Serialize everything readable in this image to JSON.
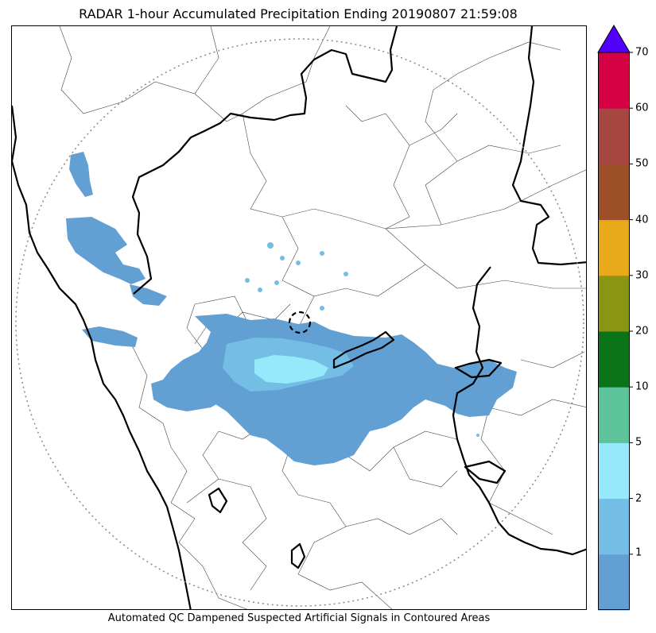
{
  "title": "RADAR 1-hour Accumulated Precipitation Ending 20190807 21:59:08",
  "footer": "Automated QC Dampened Suspected Artificial Signals in Contoured Areas",
  "colorbar": {
    "ticks": [
      "1",
      "2",
      "5",
      "10",
      "20",
      "30",
      "40",
      "50",
      "60",
      "70"
    ],
    "bins": [
      {
        "color": "#62a0d4"
      },
      {
        "color": "#74bde4"
      },
      {
        "color": "#96e9fa"
      },
      {
        "color": "#5cc39b"
      },
      {
        "color": "#0b7419"
      },
      {
        "color": "#8a9514"
      },
      {
        "color": "#e8a91b"
      },
      {
        "color": "#9d5027"
      },
      {
        "color": "#a64742"
      },
      {
        "color": "#d50144"
      }
    ],
    "extend_color": "#5100fb"
  },
  "colors": {
    "precip_light": "#62a0d4",
    "precip_mid": "#74bde4",
    "precip_heavy": "#96e9fa",
    "state_border": "#000000",
    "district_border": "#444444",
    "range_ring": "#888888"
  }
}
